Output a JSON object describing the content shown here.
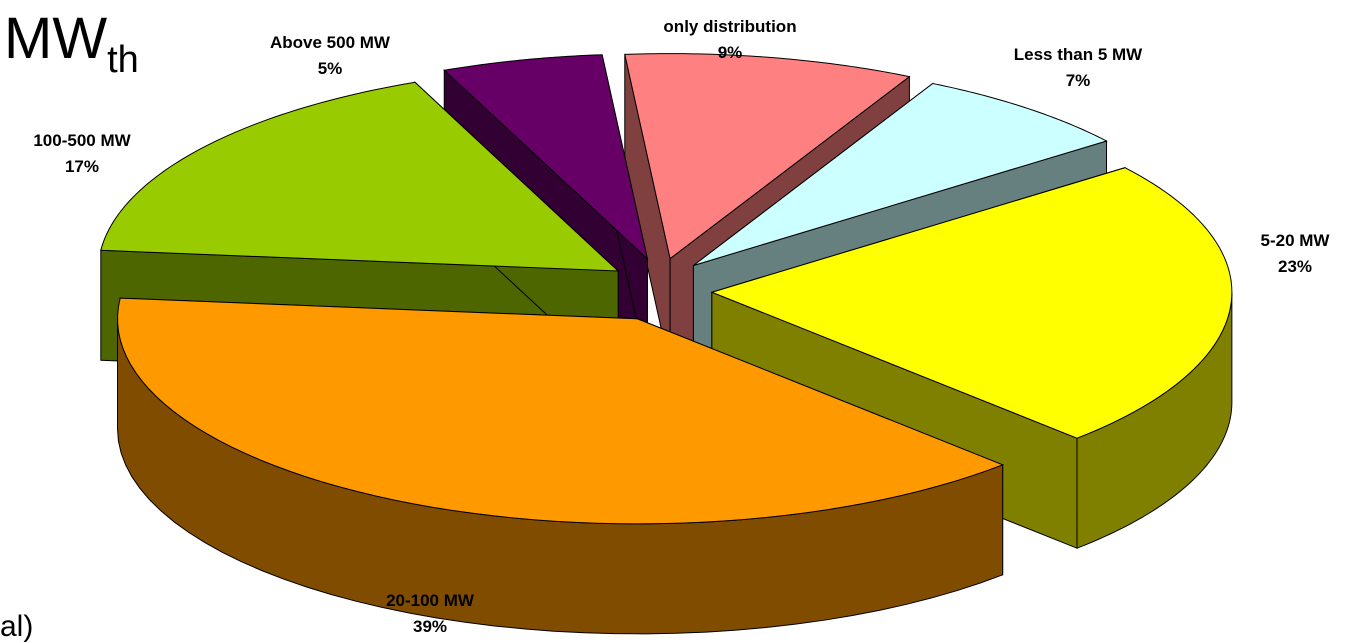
{
  "header": {
    "title_main": "MW",
    "title_sub": "th"
  },
  "footer_fragment": "al)",
  "chart_data": {
    "type": "pie",
    "three_d": true,
    "exploded": true,
    "slices": [
      {
        "label": "only distribution",
        "value": 9,
        "percent": "9%",
        "top_color": "#ff8080",
        "side_color": "#804040"
      },
      {
        "label": "Less than 5 MW",
        "value": 7,
        "percent": "7%",
        "top_color": "#ccffff",
        "side_color": "#668080"
      },
      {
        "label": "5-20 MW",
        "value": 23,
        "percent": "23%",
        "top_color": "#ffff00",
        "side_color": "#808000"
      },
      {
        "label": "20-100 MW",
        "value": 39,
        "percent": "39%",
        "top_color": "#ff9900",
        "side_color": "#804c00"
      },
      {
        "label": "100-500 MW",
        "value": 17,
        "percent": "17%",
        "top_color": "#99cc00",
        "side_color": "#4d6600"
      },
      {
        "label": "Above 500 MW",
        "value": 5,
        "percent": "5%",
        "top_color": "#660066",
        "side_color": "#330033"
      }
    ]
  }
}
